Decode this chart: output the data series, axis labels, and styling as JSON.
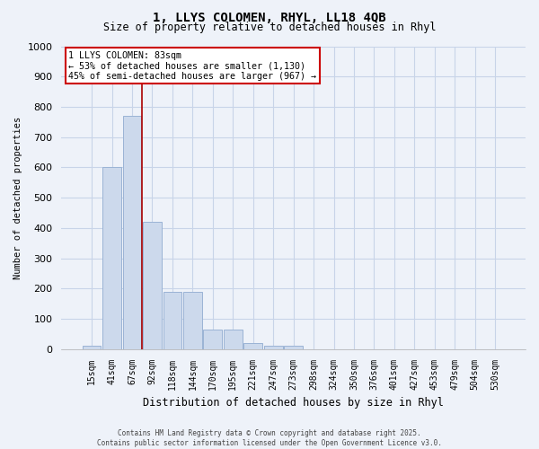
{
  "title_line1": "1, LLYS COLOMEN, RHYL, LL18 4QB",
  "title_line2": "Size of property relative to detached houses in Rhyl",
  "xlabel": "Distribution of detached houses by size in Rhyl",
  "ylabel": "Number of detached properties",
  "categories": [
    "15sqm",
    "41sqm",
    "67sqm",
    "92sqm",
    "118sqm",
    "144sqm",
    "170sqm",
    "195sqm",
    "221sqm",
    "247sqm",
    "273sqm",
    "298sqm",
    "324sqm",
    "350sqm",
    "376sqm",
    "401sqm",
    "427sqm",
    "453sqm",
    "479sqm",
    "504sqm",
    "530sqm"
  ],
  "bar_values": [
    10,
    600,
    770,
    420,
    190,
    190,
    65,
    65,
    20,
    10,
    10,
    0,
    0,
    0,
    0,
    0,
    0,
    0,
    0,
    0,
    0
  ],
  "bar_color": "#ccd9ec",
  "bar_edge_color": "#9ab3d5",
  "grid_color": "#c8d4e8",
  "property_line_x": 2.48,
  "annotation_text_line1": "1 LLYS COLOMEN: 83sqm",
  "annotation_text_line2": "← 53% of detached houses are smaller (1,130)",
  "annotation_text_line3": "45% of semi-detached houses are larger (967) →",
  "annotation_box_color": "#cc0000",
  "annotation_fill": "#ffffff",
  "property_line_color": "#aa0000",
  "ylim": [
    0,
    1000
  ],
  "yticks": [
    0,
    100,
    200,
    300,
    400,
    500,
    600,
    700,
    800,
    900,
    1000
  ],
  "footer_line1": "Contains HM Land Registry data © Crown copyright and database right 2025.",
  "footer_line2": "Contains public sector information licensed under the Open Government Licence v3.0.",
  "background_color": "#eef2f9"
}
